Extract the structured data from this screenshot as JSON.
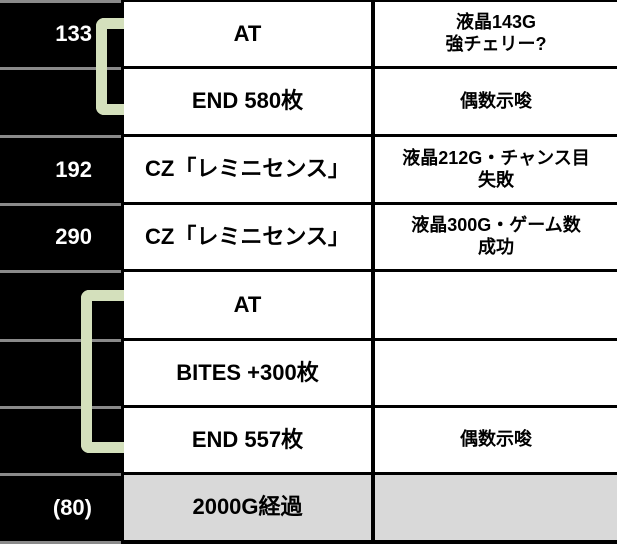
{
  "rows": [
    {
      "game": "133",
      "event": "AT",
      "note": "液晶143G\n強チェリー?"
    },
    {
      "game": "",
      "event": "END 580枚",
      "note": "偶数示唆"
    },
    {
      "game": "192",
      "event": "CZ「レミニセンス」",
      "note": "液晶212G・チャンス目\n失敗"
    },
    {
      "game": "290",
      "event": "CZ「レミニセンス」",
      "note": "液晶300G・ゲーム数\n成功"
    },
    {
      "game": "",
      "event": "AT",
      "note": ""
    },
    {
      "game": "",
      "event": "BITES +300枚",
      "note": ""
    },
    {
      "game": "",
      "event": "END 557枚",
      "note": "偶数示唆"
    },
    {
      "game": "(80)",
      "event": "2000G経過",
      "note": ""
    }
  ],
  "colors": {
    "bracket": "#d4e0bc",
    "background": "#000000",
    "final_row": "#d9d9d9"
  }
}
